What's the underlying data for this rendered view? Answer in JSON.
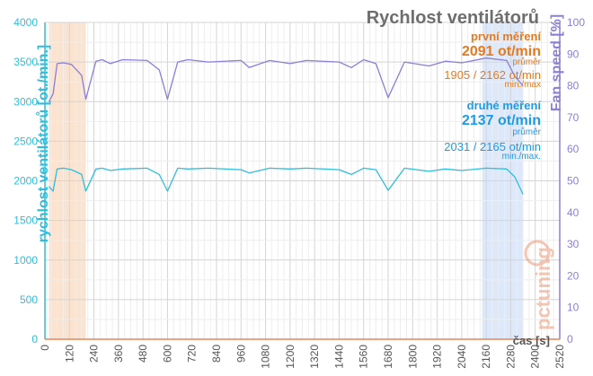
{
  "chart_data": {
    "type": "line",
    "title": "Rychlost ventilátorů",
    "xlabel": "čas [s]",
    "ylabel_left": "rychlost ventilátorů [ot./min.]",
    "ylabel_right": "Fan speed [%]",
    "x_ticks": [
      "0",
      "120",
      "240",
      "360",
      "480",
      "600",
      "720",
      "840",
      "960",
      "1080",
      "1200",
      "1320",
      "1440",
      "1560",
      "1680",
      "1800",
      "1920",
      "2040",
      "2160",
      "2280",
      "2400",
      "2520"
    ],
    "xlim": [
      0,
      2520
    ],
    "y_left_ticks": [
      "0",
      "500",
      "1000",
      "1500",
      "2000",
      "2500",
      "3000",
      "3500",
      "4000"
    ],
    "ylim_left": [
      0,
      4000
    ],
    "y_right_ticks": [
      "0",
      "10",
      "20",
      "30",
      "40",
      "50",
      "60",
      "70",
      "80",
      "90",
      "100"
    ],
    "ylim_right": [
      0,
      100
    ],
    "grid": true,
    "highlight_regions": [
      {
        "from": 20,
        "to": 200,
        "color": "#fbe3cf"
      },
      {
        "from": 2140,
        "to": 2340,
        "color": "#dde9fa"
      }
    ],
    "annotations": {
      "first_label": "první měření",
      "first_avg": "2091 ot/min",
      "first_avg_caption": "průměr",
      "first_minmax": "1905 / 2162 ot/min",
      "first_minmax_caption": "min./max",
      "second_label": "druhé měření",
      "second_avg": "2137 ot/min",
      "second_avg_caption": "průměr",
      "second_minmax": "2031 / 2165 ot/min",
      "second_minmax_caption": "min./max."
    },
    "series": [
      {
        "color": "#8b7fd6",
        "x": [
          20,
          40,
          60,
          90,
          130,
          180,
          200,
          250,
          280,
          320,
          380,
          500,
          560,
          600,
          650,
          700,
          800,
          960,
          1000,
          1100,
          1200,
          1280,
          1440,
          1500,
          1560,
          1620,
          1680,
          1760,
          1880,
          1960,
          2040,
          2160,
          2260,
          2300,
          2340
        ],
        "values": [
          3000,
          3100,
          3480,
          3490,
          3470,
          3330,
          3030,
          3510,
          3530,
          3480,
          3530,
          3520,
          3400,
          3030,
          3500,
          3530,
          3500,
          3520,
          3430,
          3520,
          3480,
          3520,
          3500,
          3430,
          3530,
          3480,
          3050,
          3500,
          3450,
          3510,
          3490,
          3550,
          3520,
          3320,
          3200
        ]
      },
      {
        "color": "#2ebedc",
        "x": [
          20,
          40,
          60,
          90,
          130,
          180,
          200,
          250,
          280,
          320,
          380,
          500,
          560,
          600,
          650,
          700,
          800,
          960,
          1000,
          1100,
          1200,
          1280,
          1440,
          1500,
          1560,
          1620,
          1680,
          1760,
          1880,
          1960,
          2040,
          2160,
          2260,
          2300,
          2340
        ],
        "values": [
          1930,
          1870,
          2150,
          2160,
          2140,
          2080,
          1870,
          2150,
          2160,
          2130,
          2150,
          2160,
          2080,
          1870,
          2160,
          2150,
          2160,
          2140,
          2100,
          2160,
          2150,
          2160,
          2140,
          2080,
          2160,
          2140,
          1880,
          2160,
          2120,
          2150,
          2130,
          2160,
          2150,
          2050,
          1830
        ]
      }
    ]
  },
  "colors": {
    "left_axis": "#2ebedc",
    "right_axis": "#8b7fd6",
    "title": "#6e6e6e",
    "first_text": "#e57a22",
    "second_text": "#1e9be8",
    "grid": "#dcdcdc"
  },
  "watermark": "pctuning"
}
